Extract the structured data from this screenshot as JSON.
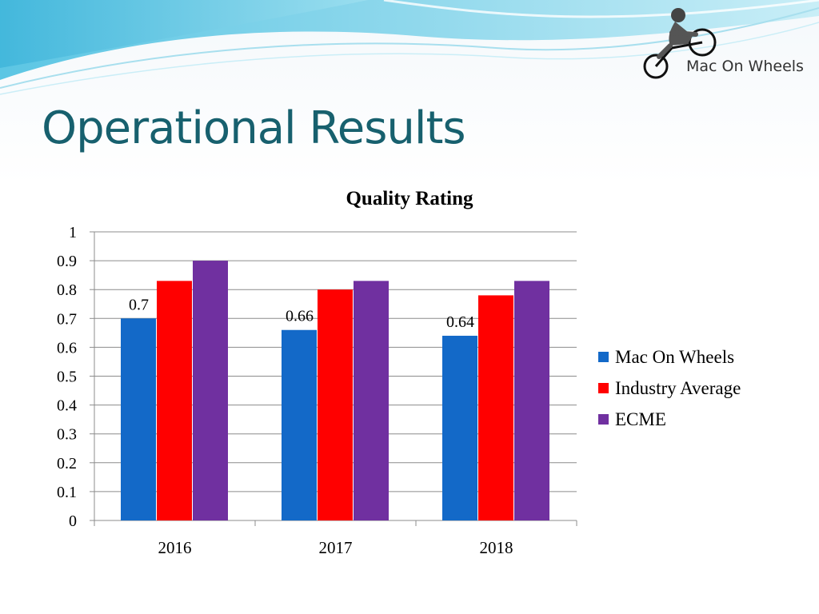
{
  "slide": {
    "title": "Operational Results",
    "logo_text": "Mac On Wheels"
  },
  "chart_data": {
    "type": "bar",
    "title": "Quality Rating",
    "xlabel": "",
    "ylabel": "",
    "categories": [
      "2016",
      "2017",
      "2018"
    ],
    "series": [
      {
        "name": "Mac On Wheels",
        "values": [
          0.7,
          0.66,
          0.64
        ],
        "color": "#1369c8",
        "data_labels": [
          "0.7",
          "0.66",
          "0.64"
        ]
      },
      {
        "name": "Industry Average",
        "values": [
          0.83,
          0.8,
          0.78
        ],
        "color": "#ff0000"
      },
      {
        "name": "ECME",
        "values": [
          0.9,
          0.83,
          0.83
        ],
        "color": "#7030a0"
      }
    ],
    "ylim": [
      0,
      1
    ],
    "yticks": [
      "0",
      "0.1",
      "0.2",
      "0.3",
      "0.4",
      "0.5",
      "0.6",
      "0.7",
      "0.8",
      "0.9",
      "1"
    ],
    "grid": true,
    "legend": "right"
  },
  "icons": {
    "logo": "cyclist-logo-icon"
  }
}
